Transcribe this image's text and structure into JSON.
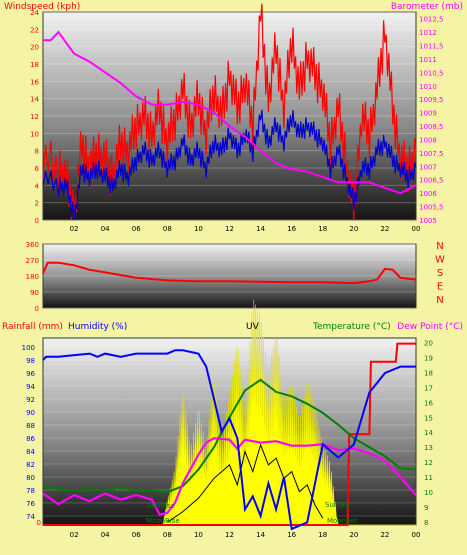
{
  "header": {
    "title_top": "",
    "windspeed_label": "Windspeed (kph)",
    "barometer_label": "Barometer (mb)"
  },
  "mid": {
    "compass": [
      "N",
      "W",
      "S",
      "E",
      "N"
    ]
  },
  "bottom": {
    "rainfall_label": "Rainfall (mm)",
    "humidity_label": "Humidity (%)",
    "uv_label": "UV",
    "temperature_label": "Temperature (°C)",
    "dewpoint_label": "Dew Point (°C)",
    "sunrise": "SunRise",
    "sunset": "SunSet",
    "moonrise": "MoonRise",
    "moonset": "MoonSet"
  },
  "colors": {
    "background": "#f4f4a4",
    "wind_gust": "#ff0000",
    "wind_avg": "#0000cc",
    "barometer": "#ff00ff",
    "direction": "#ff0000",
    "humidity": "#0000ff",
    "temperature": "#008000",
    "dewpoint": "#ff00ff",
    "uv": "#ffff00",
    "rain": "#ff0000",
    "solar": "#000000",
    "left_axis": "#ff0000",
    "right_axis": "#ff00ff",
    "humidity_axis": "#0000ff",
    "temp_axis": "#008000"
  },
  "chart_data": [
    {
      "type": "line",
      "name": "wind-barometer",
      "x_ticks": [
        "02",
        "04",
        "06",
        "08",
        "10",
        "12",
        "14",
        "16",
        "18",
        "20",
        "22",
        "00"
      ],
      "y_left_ticks": [
        0,
        2,
        4,
        6,
        8,
        10,
        12,
        14,
        16,
        18,
        20,
        22,
        24
      ],
      "ylim_left": [
        0,
        24
      ],
      "y_right_ticks": [
        "1005",
        "1005,5",
        "1006",
        "1006,5",
        "1007",
        "1007,5",
        "1008",
        "1008,5",
        "1009",
        "1009,5",
        "1010",
        "1010,5",
        "1011",
        "1011,5",
        "1012",
        "1012,5"
      ],
      "ylim_right": [
        1005,
        1012.75
      ],
      "xlim": [
        0,
        24
      ],
      "series": [
        {
          "role": "gust",
          "x": [
            0,
            1,
            1.5,
            2,
            2.5,
            3,
            3.5,
            4,
            4.5,
            5,
            5.5,
            6,
            6.5,
            7,
            7.5,
            8,
            8.5,
            9,
            9.5,
            10,
            10.5,
            11,
            11.5,
            12,
            12.5,
            13,
            13.5,
            14,
            14.5,
            15,
            15.5,
            16,
            16.5,
            17,
            17.5,
            18,
            18.5,
            19,
            19.5,
            20,
            20.5,
            21,
            21.5,
            22,
            22.5,
            23,
            23.5,
            24
          ],
          "values": [
            7,
            6,
            5,
            0.5,
            9,
            6,
            8,
            7,
            5,
            9,
            8,
            11,
            12,
            10,
            13,
            9,
            12,
            15,
            11,
            14,
            10,
            15,
            12,
            17,
            13,
            16,
            11,
            24,
            14,
            20,
            13,
            21,
            15,
            19,
            17,
            15,
            9,
            13,
            7,
            1,
            12,
            10,
            15,
            22,
            13,
            7,
            6,
            8
          ]
        },
        {
          "role": "average",
          "x": [
            0,
            1,
            1.5,
            2,
            2.5,
            3,
            3.5,
            4,
            4.5,
            5,
            5.5,
            6,
            6.5,
            7,
            7.5,
            8,
            8.5,
            9,
            9.5,
            10,
            10.5,
            11,
            11.5,
            12,
            12.5,
            13,
            13.5,
            14,
            14.5,
            15,
            15.5,
            16,
            16.5,
            17,
            17.5,
            18,
            18.5,
            19,
            19.5,
            20,
            20.5,
            21,
            21.5,
            22,
            22.5,
            23,
            23.5,
            24
          ],
          "values": [
            5,
            4,
            4,
            0.5,
            6,
            5,
            6,
            5,
            4,
            6,
            5,
            7,
            8,
            7,
            8,
            6,
            7,
            9,
            7,
            8,
            6,
            9,
            8,
            10,
            8,
            10,
            8,
            12,
            9,
            11,
            9,
            12,
            10,
            11,
            10,
            9,
            6,
            8,
            5,
            2,
            6,
            6,
            8,
            9,
            7,
            6,
            5,
            6
          ]
        },
        {
          "role": "barometer",
          "x": [
            0,
            0.5,
            1,
            1.5,
            2,
            3,
            4,
            5,
            6,
            7,
            8,
            9,
            10,
            11,
            12,
            13,
            14,
            15,
            16,
            17,
            18,
            19,
            20,
            21,
            22,
            23,
            24
          ],
          "values": [
            1011.7,
            1011.7,
            1012,
            1011.6,
            1011.2,
            1010.9,
            1010.5,
            1010.1,
            1009.6,
            1009.3,
            1009.3,
            1009.4,
            1009.3,
            1009,
            1008.5,
            1008.1,
            1007.6,
            1007.1,
            1006.9,
            1006.8,
            1006.6,
            1006.4,
            1006.4,
            1006.4,
            1006.2,
            1006,
            1006.3
          ]
        }
      ]
    },
    {
      "type": "line",
      "name": "wind-direction",
      "y_ticks": [
        0,
        90,
        180,
        270,
        360
      ],
      "ylim": [
        0,
        360
      ],
      "xlim": [
        0,
        24
      ],
      "series": [
        {
          "role": "direction",
          "x": [
            0,
            0.3,
            1,
            2,
            3,
            4,
            5,
            6,
            8,
            10,
            12,
            14,
            16,
            18,
            20,
            21,
            21.5,
            22,
            22.5,
            23,
            24
          ],
          "values": [
            195,
            255,
            255,
            240,
            215,
            200,
            185,
            170,
            155,
            150,
            150,
            148,
            145,
            145,
            140,
            150,
            160,
            220,
            215,
            170,
            160
          ]
        }
      ]
    },
    {
      "type": "line",
      "name": "temp-humidity-uv",
      "x_ticks": [
        "02",
        "04",
        "06",
        "08",
        "10",
        "12",
        "14",
        "16",
        "18",
        "20",
        "22",
        "00"
      ],
      "humidity_ticks": [
        74,
        76,
        78,
        80,
        82,
        84,
        86,
        88,
        90,
        92,
        94,
        96,
        98,
        100
      ],
      "ylim_humidity": [
        72.6,
        101.4
      ],
      "temp_ticks": [
        8,
        9,
        10,
        11,
        12,
        13,
        14,
        15,
        16,
        17,
        18,
        19,
        20
      ],
      "ylim_temp": [
        7.8,
        20.3
      ],
      "uv_ticks": [
        0
      ],
      "xlim": [
        0,
        24
      ],
      "series": [
        {
          "role": "humidity",
          "x": [
            0,
            0.2,
            1,
            3,
            3.5,
            4,
            5,
            6,
            7,
            8,
            8.5,
            9,
            10,
            10.5,
            11,
            11.5,
            12,
            12.5,
            13,
            13.5,
            14,
            14.5,
            15,
            15.5,
            16,
            17,
            17.5,
            18,
            19,
            20,
            21,
            22,
            23,
            24
          ],
          "values": [
            98,
            98.5,
            98.5,
            99,
            98.5,
            99,
            98.5,
            99,
            99,
            99,
            99.5,
            99.5,
            99,
            97,
            92,
            87,
            89,
            86,
            75,
            77,
            74,
            79,
            75,
            80,
            72,
            73,
            79,
            85,
            83,
            85,
            93,
            96,
            97,
            97
          ]
        },
        {
          "role": "temperature",
          "x": [
            0,
            1,
            2,
            3,
            4,
            5,
            6,
            7,
            8,
            9,
            10,
            11,
            12,
            13,
            14,
            15,
            16,
            17,
            18,
            19,
            20,
            21,
            22,
            23,
            24
          ],
          "values": [
            10.4,
            10.2,
            10.1,
            10.2,
            10.1,
            10.3,
            10.1,
            10.1,
            10,
            10.4,
            11.5,
            13,
            15,
            16.8,
            17.5,
            16.7,
            16.4,
            15.9,
            15.3,
            14.5,
            13.6,
            13,
            12.4,
            11.6,
            11.5
          ]
        },
        {
          "role": "dewpoint",
          "x": [
            0,
            1,
            2,
            3,
            4,
            5,
            6,
            7,
            7.5,
            8,
            8.5,
            9,
            10,
            10.5,
            11,
            12,
            12.5,
            13,
            14,
            15,
            16,
            17,
            18,
            19,
            20,
            21,
            22,
            23,
            24
          ],
          "values": [
            9.9,
            9.2,
            9.8,
            9.4,
            9.9,
            9.5,
            9.8,
            9.5,
            8.5,
            8.6,
            9.3,
            10.6,
            12.5,
            13.3,
            13.6,
            13.5,
            12.9,
            13.5,
            13.3,
            13.4,
            13.1,
            13.1,
            13.2,
            12.8,
            12.9,
            12.6,
            12.1,
            11,
            9.8
          ]
        },
        {
          "role": "uv",
          "x": [
            0,
            7.7,
            8,
            8.5,
            9,
            9.5,
            10,
            10.5,
            11,
            11.5,
            12,
            12.5,
            13,
            13.5,
            14,
            14.5,
            15,
            15.5,
            16,
            16.5,
            17,
            17.5,
            18,
            18.5,
            19,
            24
          ],
          "values": [
            0,
            0,
            1.4,
            3.2,
            7.8,
            4.2,
            6.6,
            4.4,
            8.4,
            4.6,
            7.2,
            10.2,
            6.2,
            12.6,
            11.6,
            8.4,
            10.8,
            7.0,
            7.8,
            5.8,
            8.0,
            6.6,
            4.6,
            3.4,
            0,
            0
          ]
        },
        {
          "role": "rain",
          "x": [
            0,
            19.6,
            19.7,
            21,
            21.1,
            22.7,
            22.8,
            24
          ],
          "values": [
            0,
            0,
            0.5,
            0.5,
            0.9,
            0.9,
            1,
            1
          ]
        }
      ]
    }
  ]
}
